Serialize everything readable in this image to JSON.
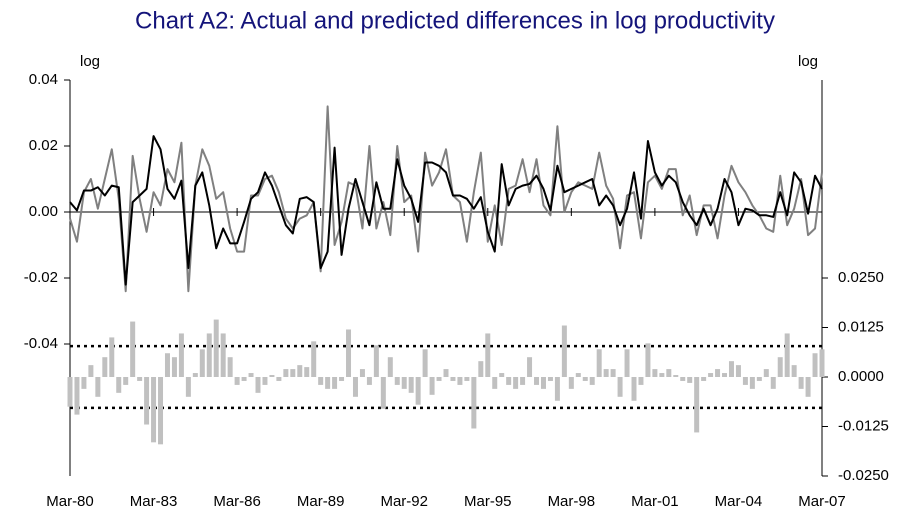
{
  "chart_data": {
    "type": "line",
    "title": "Chart A2: Actual and predicted differences in log productivity",
    "y_label": "log",
    "y2_label": "log",
    "categories": [
      "Mar-80",
      null,
      null,
      null,
      null,
      null,
      null,
      null,
      null,
      null,
      null,
      null,
      "Mar-83",
      null,
      null,
      null,
      null,
      null,
      null,
      null,
      null,
      null,
      null,
      null,
      "Mar-86",
      null,
      null,
      null,
      null,
      null,
      null,
      null,
      null,
      null,
      null,
      null,
      "Mar-89",
      null,
      null,
      null,
      null,
      null,
      null,
      null,
      null,
      null,
      null,
      null,
      "Mar-92",
      null,
      null,
      null,
      null,
      null,
      null,
      null,
      null,
      null,
      null,
      null,
      "Mar-95",
      null,
      null,
      null,
      null,
      null,
      null,
      null,
      null,
      null,
      null,
      null,
      "Mar-98",
      null,
      null,
      null,
      null,
      null,
      null,
      null,
      null,
      null,
      null,
      null,
      "Mar-01",
      null,
      null,
      null,
      null,
      null,
      null,
      null,
      null,
      null,
      null,
      null,
      "Mar-04",
      null,
      null,
      null,
      null,
      null,
      null,
      null,
      null,
      null,
      null,
      null,
      "Mar-07"
    ],
    "ylim": [
      -0.08,
      0.04
    ],
    "yticks": [
      0.04,
      0.02,
      {
        "value": 0,
        "label": "0.00"
      },
      -0.02,
      -0.04
    ],
    "y2lim": [
      -0.025,
      0.075
    ],
    "y2ticks": [
      {
        "value": 0.025,
        "label": "0.0250"
      },
      {
        "value": 0.0125,
        "label": "0.0125"
      },
      {
        "value": 0,
        "label": "0.0000"
      },
      {
        "value": -0.0125,
        "label": "-0.0125"
      },
      {
        "value": -0.025,
        "label": "-0.0250"
      }
    ],
    "y2_reference_lines": [
      0.0078,
      -0.0078
    ],
    "series": [
      {
        "type": "line",
        "color": "#808080",
        "values": [
          -0.002,
          -0.009,
          0.006,
          0.01,
          0.001,
          0.01,
          0.019,
          0.004,
          -0.024,
          0.017,
          0.004,
          -0.006,
          0.006,
          0.002,
          0.013,
          0.009,
          0.021,
          -0.024,
          0.008,
          0.019,
          0.014,
          0.004,
          0.006,
          -0.005,
          -0.012,
          -0.012,
          0.005,
          0.005,
          0.01,
          0.011,
          0.006,
          -0.002,
          -0.005,
          -0.002,
          -0.001,
          0.003,
          -0.018,
          0.032,
          -0.01,
          -0.003,
          0.009,
          0.008,
          -0.005,
          0.02,
          -0.005,
          0.003,
          -0.007,
          0.02,
          0.003,
          0.005,
          -0.012,
          0.018,
          0.008,
          0.012,
          0.019,
          0.005,
          0.003,
          -0.009,
          0.006,
          0.018,
          -0.009,
          0.002,
          -0.01,
          0.007,
          0.008,
          0.016,
          0.006,
          0.016,
          0.002,
          -0.001,
          0.026,
          0.0,
          0.006,
          0.009,
          0.008,
          0.007,
          0.018,
          0.008,
          0.004,
          -0.011,
          0.005,
          0.006,
          -0.008,
          0.009,
          0.011,
          0.007,
          0.013,
          0.013,
          -0.001,
          0.005,
          -0.007,
          0.002,
          0.002,
          -0.008,
          0.005,
          0.014,
          0.009,
          0.006,
          0.002,
          -0.001,
          -0.005,
          -0.006,
          0.011,
          -0.004,
          0.001,
          0.01,
          -0.007,
          -0.005,
          0.012
        ]
      },
      {
        "type": "line",
        "color": "#000000",
        "values": [
          0.003,
          0.0005,
          0.0065,
          0.0065,
          0.0075,
          0.005,
          0.008,
          0.0075,
          -0.022,
          0.003,
          0.005,
          0.007,
          0.023,
          0.019,
          0.007,
          0.004,
          0.0095,
          -0.017,
          0.008,
          0.012,
          0.002,
          -0.011,
          -0.005,
          -0.0095,
          -0.0095,
          -0.003,
          0.004,
          0.006,
          0.012,
          0.008,
          0.002,
          -0.004,
          -0.0065,
          0.004,
          0.0045,
          0.003,
          -0.017,
          -0.012,
          0.0195,
          -0.013,
          0.001,
          0.01,
          0.003,
          -0.004,
          0.009,
          0.001,
          0.001,
          0.016,
          0.008,
          0.004,
          -0.003,
          0.015,
          0.015,
          0.014,
          0.012,
          0.005,
          0.005,
          0.004,
          0.001,
          0.0045,
          -0.006,
          -0.012,
          0.0145,
          0.002,
          0.007,
          0.008,
          0.0085,
          0.011,
          0.007,
          0.0005,
          0.014,
          0.006,
          0.007,
          0.008,
          0.009,
          0.01,
          0.002,
          0.005,
          0.002,
          -0.004,
          0.001,
          0.012,
          -0.002,
          0.0215,
          0.012,
          0.008,
          0.011,
          0.009,
          0.003,
          -0.001,
          -0.004,
          0.001,
          -0.004,
          0.001,
          0.01,
          0.006,
          -0.004,
          0.001,
          0.0005,
          -0.001,
          -0.001,
          -0.0015,
          0.006,
          -0.001,
          0.012,
          0.009,
          -0.0005,
          0.011,
          0.007
        ]
      },
      {
        "type": "bar",
        "axis": "y2",
        "color": "#c0c0c0",
        "values": [
          -0.0075,
          -0.0095,
          -0.003,
          0.003,
          -0.005,
          0.005,
          0.01,
          -0.004,
          -0.002,
          0.014,
          -0.001,
          -0.012,
          -0.0165,
          -0.017,
          0.006,
          0.005,
          0.011,
          -0.005,
          0.001,
          0.007,
          0.011,
          0.0145,
          0.011,
          0.005,
          -0.002,
          -0.001,
          0.001,
          -0.004,
          -0.002,
          0.0005,
          -0.001,
          0.002,
          0.002,
          0.003,
          0.0025,
          0.009,
          -0.002,
          -0.003,
          -0.003,
          -0.001,
          0.012,
          -0.005,
          0.002,
          -0.002,
          0.008,
          -0.008,
          0.005,
          -0.002,
          -0.003,
          -0.004,
          -0.007,
          0.007,
          -0.0045,
          -0.001,
          0.002,
          -0.001,
          -0.002,
          -0.001,
          -0.013,
          0.004,
          0.011,
          -0.003,
          0.001,
          -0.002,
          -0.003,
          -0.002,
          0.005,
          -0.002,
          -0.003,
          -0.001,
          -0.006,
          0.013,
          -0.003,
          0.001,
          -0.001,
          -0.002,
          0.007,
          0.002,
          0.002,
          -0.005,
          0.007,
          -0.006,
          -0.002,
          0.0085,
          0.002,
          0.001,
          0.002,
          0.0005,
          -0.001,
          -0.0015,
          -0.014,
          -0.001,
          0.001,
          0.002,
          0.001,
          0.004,
          0.003,
          -0.002,
          -0.003,
          -0.001,
          0.002,
          -0.003,
          0.005,
          0.011,
          0.003,
          -0.003,
          -0.005,
          0.006,
          0.007
        ]
      }
    ]
  }
}
